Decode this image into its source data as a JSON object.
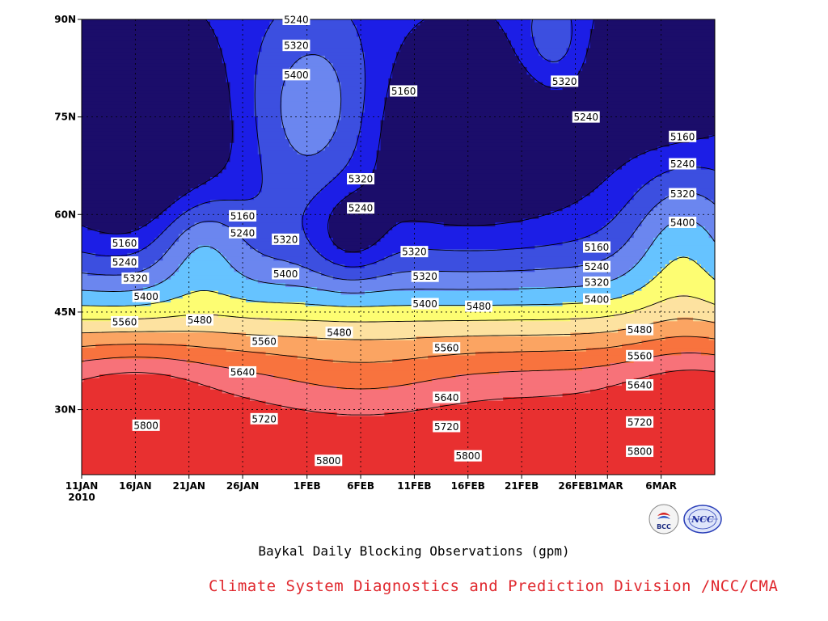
{
  "chart_data": {
    "type": "heatmap",
    "title": "Baykal Daily Blocking Observations (gpm)",
    "credit": "Climate System Diagnostics and Prediction Division /NCC/CMA",
    "x_ticks": [
      "11JAN",
      "16JAN",
      "21JAN",
      "26JAN",
      "1FEB",
      "6FEB",
      "11FEB",
      "16FEB",
      "21FEB",
      "26FEB",
      "1MAR",
      "6MAR"
    ],
    "x_year": "2010",
    "x_range": [
      "2010-01-11",
      "2010-03-11"
    ],
    "y_ticks": [
      "30N",
      "45N",
      "60N",
      "75N",
      "90N"
    ],
    "ylim": [
      20,
      90
    ],
    "grid": true,
    "contour_levels": [
      5160,
      5240,
      5320,
      5400,
      5480,
      5560,
      5640,
      5720,
      5800
    ],
    "fill_colors": [
      "#1b0d6a",
      "#1c1ee6",
      "#3c4fe0",
      "#6b86ef",
      "#66c3ff",
      "#fdfd72",
      "#fde2a0",
      "#fba462",
      "#f8733e",
      "#f77279",
      "#e83030"
    ],
    "contour_labels": [
      {
        "text": "5240",
        "date": "2010-01-31",
        "lat": 90.0
      },
      {
        "text": "5320",
        "date": "2010-01-31",
        "lat": 86.0
      },
      {
        "text": "5400",
        "date": "2010-01-31",
        "lat": 81.5
      },
      {
        "text": "5160",
        "date": "2010-02-10",
        "lat": 79.0
      },
      {
        "text": "5320",
        "date": "2010-02-25",
        "lat": 80.5
      },
      {
        "text": "5240",
        "date": "2010-02-27",
        "lat": 75.0
      },
      {
        "text": "5160",
        "date": "2010-03-08",
        "lat": 72.0
      },
      {
        "text": "5240",
        "date": "2010-03-08",
        "lat": 67.8
      },
      {
        "text": "5320",
        "date": "2010-03-08",
        "lat": 63.2
      },
      {
        "text": "5400",
        "date": "2010-03-08",
        "lat": 58.8
      },
      {
        "text": "5320",
        "date": "2010-02-06",
        "lat": 65.5
      },
      {
        "text": "5240",
        "date": "2010-02-06",
        "lat": 61.0
      },
      {
        "text": "5160",
        "date": "2010-01-26",
        "lat": 59.8
      },
      {
        "text": "5240",
        "date": "2010-01-26",
        "lat": 57.2
      },
      {
        "text": "5320",
        "date": "2010-01-30",
        "lat": 56.2
      },
      {
        "text": "5400",
        "date": "2010-01-30",
        "lat": 50.9
      },
      {
        "text": "5160",
        "date": "2010-01-15",
        "lat": 55.6
      },
      {
        "text": "5240",
        "date": "2010-01-15",
        "lat": 52.7
      },
      {
        "text": "5320",
        "date": "2010-01-16",
        "lat": 50.2
      },
      {
        "text": "5400",
        "date": "2010-01-17",
        "lat": 47.4
      },
      {
        "text": "5480",
        "date": "2010-01-22",
        "lat": 43.8
      },
      {
        "text": "5560",
        "date": "2010-01-15",
        "lat": 43.5
      },
      {
        "text": "5320",
        "date": "2010-02-11",
        "lat": 54.3
      },
      {
        "text": "5320",
        "date": "2010-02-12",
        "lat": 50.5
      },
      {
        "text": "5400",
        "date": "2010-02-12",
        "lat": 46.3
      },
      {
        "text": "5480",
        "date": "2010-02-17",
        "lat": 45.9
      },
      {
        "text": "5160",
        "date": "2010-02-28",
        "lat": 55.0
      },
      {
        "text": "5240",
        "date": "2010-02-28",
        "lat": 52.0
      },
      {
        "text": "5320",
        "date": "2010-02-28",
        "lat": 49.6
      },
      {
        "text": "5400",
        "date": "2010-02-28",
        "lat": 47.0
      },
      {
        "text": "5480",
        "date": "2010-03-04",
        "lat": 42.3
      },
      {
        "text": "5560",
        "date": "2010-03-04",
        "lat": 38.3
      },
      {
        "text": "5640",
        "date": "2010-03-04",
        "lat": 33.8
      },
      {
        "text": "5720",
        "date": "2010-03-04",
        "lat": 28.1
      },
      {
        "text": "5800",
        "date": "2010-03-04",
        "lat": 23.6
      },
      {
        "text": "5480",
        "date": "2010-02-04",
        "lat": 41.9
      },
      {
        "text": "5560",
        "date": "2010-01-28",
        "lat": 40.5
      },
      {
        "text": "5560",
        "date": "2010-02-14",
        "lat": 39.5
      },
      {
        "text": "5640",
        "date": "2010-01-26",
        "lat": 35.8
      },
      {
        "text": "5640",
        "date": "2010-02-14",
        "lat": 31.9
      },
      {
        "text": "5720",
        "date": "2010-01-28",
        "lat": 28.6
      },
      {
        "text": "5720",
        "date": "2010-02-14",
        "lat": 27.4
      },
      {
        "text": "5800",
        "date": "2010-01-17",
        "lat": 27.6
      },
      {
        "text": "5800",
        "date": "2010-02-03",
        "lat": 22.2
      },
      {
        "text": "5800",
        "date": "2010-02-16",
        "lat": 22.9
      }
    ]
  },
  "logos": {
    "bcc_text": "BCC",
    "ncc_text": "NCC"
  }
}
